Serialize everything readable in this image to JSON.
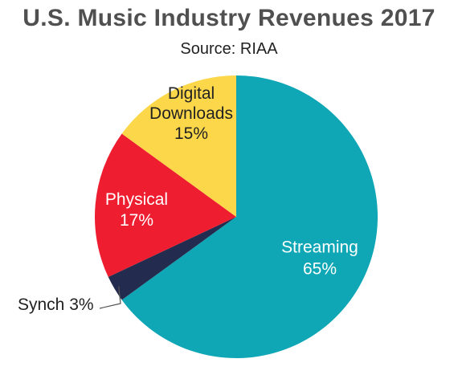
{
  "title": "U.S. Music Industry Revenues 2017",
  "subtitle": "Source: RIAA",
  "chart_data": {
    "type": "pie",
    "title": "U.S. Music Industry Revenues 2017",
    "subtitle": "Source: RIAA",
    "slices": [
      {
        "name": "Streaming",
        "value": 65,
        "label_lines": [
          "Streaming",
          "65%"
        ],
        "color": "#0fa7b5",
        "text_color": "#ffffff"
      },
      {
        "name": "Synch",
        "value": 3,
        "label_lines": [
          "Synch 3%"
        ],
        "color": "#232c4e",
        "text_color": "#222222"
      },
      {
        "name": "Physical",
        "value": 17,
        "label_lines": [
          "Physical",
          "17%"
        ],
        "color": "#ee1d2f",
        "text_color": "#ffffff"
      },
      {
        "name": "Digital Downloads",
        "value": 15,
        "label_lines": [
          "Digital",
          "Downloads",
          "15%"
        ],
        "color": "#fcd74a",
        "text_color": "#222222"
      }
    ],
    "start_angle_deg": 0,
    "direction": "clockwise"
  }
}
